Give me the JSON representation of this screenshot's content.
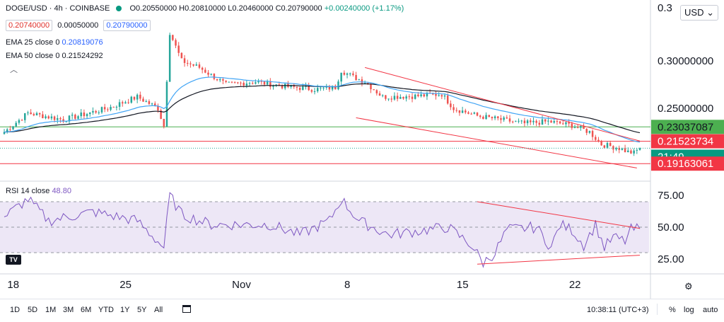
{
  "header": {
    "symbol": "DOGE/USD · 4h · COINBASE",
    "open": "O0.20550000",
    "high": "H0.20810000",
    "low": "L0.20460000",
    "close": "C0.20790000",
    "change": "+0.00240000 (+1.17%)",
    "bid": "0.20740000",
    "spread": "0.00050000",
    "ask": "0.20790000",
    "ema25_label": "EMA 25 close 0",
    "ema25_value": "0.20819076",
    "ema50_label": "EMA 50 close 0",
    "ema50_value": "0.21524292",
    "currency": "USD"
  },
  "rsi_header": {
    "label": "RSI 14 close",
    "value": "48.80"
  },
  "price_axis": {
    "ticks": [
      "0.30000000",
      "0.25000000"
    ],
    "top_label": "0.3",
    "badges": [
      {
        "text": "0.23037087",
        "color": "#4caf50",
        "textColor": "#131722"
      },
      {
        "text": "0.21523734",
        "color": "#f23645",
        "textColor": "#ffffff"
      },
      {
        "text": "21:49",
        "color": "#089981",
        "textColor": "#ffffff"
      },
      {
        "text": "0.19163061",
        "color": "#f23645",
        "textColor": "#ffffff"
      }
    ]
  },
  "rsi_axis": {
    "ticks": [
      "75.00",
      "50.00",
      "25.00"
    ]
  },
  "time_axis": {
    "labels": [
      "18",
      "25",
      "Nov",
      "8",
      "15",
      "22"
    ]
  },
  "bottom_bar": {
    "ranges": [
      "1D",
      "5D",
      "1M",
      "3M",
      "6M",
      "YTD",
      "1Y",
      "5Y",
      "All"
    ],
    "time": "10:38:11 (UTC+3)",
    "options": [
      "%",
      "log",
      "auto"
    ]
  },
  "colors": {
    "up": "#26a69a",
    "down": "#ef5350",
    "ema25": "#42a5f5",
    "ema50": "#131722",
    "rsi": "#7e57c2",
    "rsi_band": "#ede7f6",
    "channel": "#f23645",
    "support_green": "#4caf50",
    "resistance_red": "#f23645"
  },
  "chart_data": [
    {
      "type": "candlestick",
      "title": "DOGE/USD · 4h · COINBASE",
      "x_labels": [
        "18",
        "25",
        "Nov",
        "8",
        "15",
        "22"
      ],
      "y_ticks": [
        0.25,
        0.3
      ],
      "candle_count": 216,
      "close_path": [
        [
          0,
          0.225
        ],
        [
          8,
          0.245
        ],
        [
          20,
          0.238
        ],
        [
          35,
          0.25
        ],
        [
          45,
          0.262
        ],
        [
          52,
          0.25
        ],
        [
          54,
          0.231
        ],
        [
          56,
          0.33
        ],
        [
          60,
          0.3
        ],
        [
          66,
          0.293
        ],
        [
          75,
          0.275
        ],
        [
          85,
          0.278
        ],
        [
          95,
          0.273
        ],
        [
          105,
          0.27
        ],
        [
          112,
          0.272
        ],
        [
          114,
          0.29
        ],
        [
          118,
          0.283
        ],
        [
          122,
          0.278
        ],
        [
          128,
          0.262
        ],
        [
          140,
          0.263
        ],
        [
          148,
          0.265
        ],
        [
          152,
          0.25
        ],
        [
          160,
          0.242
        ],
        [
          168,
          0.238
        ],
        [
          176,
          0.234
        ],
        [
          184,
          0.236
        ],
        [
          192,
          0.232
        ],
        [
          198,
          0.225
        ],
        [
          202,
          0.212
        ],
        [
          208,
          0.208
        ],
        [
          211,
          0.204
        ],
        [
          213,
          0.203
        ],
        [
          215,
          0.2079
        ]
      ],
      "ema25": {
        "name": "EMA 25 close 0",
        "last": 0.20819076
      },
      "ema50": {
        "name": "EMA 50 close 0",
        "last": 0.21524292
      },
      "horizontal_levels": [
        0.23037087,
        0.21523734,
        0.19163061
      ],
      "descending_channel": {
        "upper": {
          "start": [
            122,
            0.293
          ],
          "end": [
            215,
            0.2155
          ]
        },
        "lower": {
          "start": [
            119,
            0.24
          ],
          "end": [
            214,
            0.187
          ]
        }
      }
    },
    {
      "type": "line",
      "title": "RSI 14 close",
      "last_value": 48.8,
      "ylim": [
        15,
        85
      ],
      "y_ticks": [
        75,
        50,
        25
      ],
      "band": [
        30,
        70
      ],
      "midline": 50,
      "key_points": [
        [
          0,
          58
        ],
        [
          8,
          72
        ],
        [
          15,
          55
        ],
        [
          30,
          62
        ],
        [
          45,
          55
        ],
        [
          54,
          34
        ],
        [
          56,
          75
        ],
        [
          60,
          60
        ],
        [
          70,
          52
        ],
        [
          90,
          52
        ],
        [
          100,
          44
        ],
        [
          110,
          55
        ],
        [
          114,
          72
        ],
        [
          120,
          55
        ],
        [
          130,
          44
        ],
        [
          150,
          50
        ],
        [
          158,
          36
        ],
        [
          162,
          22
        ],
        [
          166,
          30
        ],
        [
          170,
          48
        ],
        [
          180,
          50
        ],
        [
          185,
          34
        ],
        [
          188,
          52
        ],
        [
          192,
          48
        ],
        [
          196,
          36
        ],
        [
          200,
          52
        ],
        [
          203,
          34
        ],
        [
          206,
          42
        ],
        [
          210,
          39
        ],
        [
          212,
          48
        ],
        [
          215,
          48.8
        ]
      ],
      "trendlines": {
        "upper": {
          "start": [
            160,
            70
          ],
          "end": [
            215,
            49
          ]
        },
        "lower": {
          "start": [
            160,
            21
          ],
          "end": [
            215,
            28
          ]
        }
      }
    }
  ]
}
